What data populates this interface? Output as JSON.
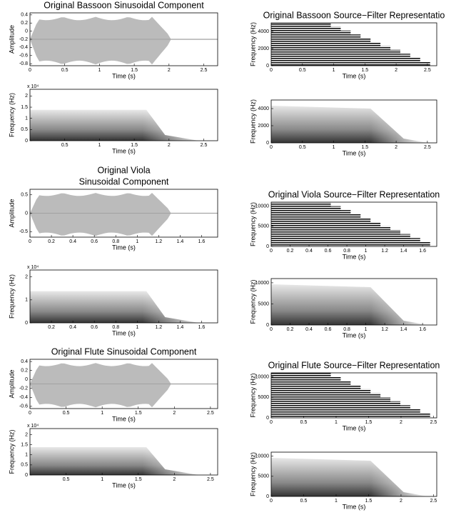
{
  "chart_data": [
    {
      "type": "waveform",
      "title": [
        "Original Bassoon Sinusoidal Component"
      ],
      "xlabel": "Time (s)",
      "ylabel": "Amplitude",
      "xlim": [
        0,
        2.7
      ],
      "ylim": [
        -0.85,
        0.45
      ],
      "xticks": [
        0,
        0.5,
        1,
        1.5,
        2,
        2.5
      ],
      "yticks": [
        0.4,
        0.2,
        0,
        -0.2,
        -0.4,
        -0.6,
        -0.8
      ]
    },
    {
      "type": "source-filter",
      "title": [
        "Original Bassoon Source−Filter Representatio"
      ],
      "xlabel": "Time (s)",
      "ylabel": "Frequency (Hz)",
      "xlim": [
        0,
        2.65
      ],
      "ylim": [
        0,
        5000
      ],
      "xticks": [
        0,
        0.5,
        1,
        1.5,
        2,
        2.5
      ],
      "yticks": [
        0,
        2000,
        4000
      ]
    },
    {
      "type": "spectrogram",
      "xlabel": "Time (s)",
      "ylabel": "Frequency (Hz)",
      "y_multiplier": "x 10⁴",
      "xlim": [
        0,
        2.7
      ],
      "ylim": [
        0,
        2.3
      ],
      "xticks": [
        0.5,
        1,
        1.5,
        2,
        2.5
      ],
      "yticks": [
        0,
        0.5,
        1,
        1.5,
        2
      ]
    },
    {
      "type": "source-filter-spectrogram",
      "xlabel": "Time (s)",
      "ylabel": "Frequency (Hz)",
      "xlim": [
        0,
        2.65
      ],
      "ylim": [
        0,
        5000
      ],
      "xticks": [
        0,
        0.5,
        1,
        1.5,
        2,
        2.5
      ],
      "yticks": [
        0,
        2000,
        4000
      ]
    },
    {
      "type": "waveform",
      "title": [
        "Original Viola",
        "Sinusoidal Component"
      ],
      "xlabel": "Time (s)",
      "ylabel": "Amplitude",
      "xlim": [
        0,
        1.75
      ],
      "ylim": [
        -0.65,
        0.65
      ],
      "xticks": [
        0,
        0.2,
        0.4,
        0.6,
        0.8,
        1,
        1.2,
        1.4,
        1.6
      ],
      "yticks": [
        0.5,
        0,
        -0.5
      ]
    },
    {
      "type": "source-filter",
      "title": [
        "Original Viola Source−Filter Representation"
      ],
      "xlabel": "Time (s)",
      "ylabel": "Frequency (Hz)",
      "xlim": [
        0,
        1.75
      ],
      "ylim": [
        0,
        11000
      ],
      "xticks": [
        0,
        0.2,
        0.4,
        0.6,
        0.8,
        1,
        1.2,
        1.4,
        1.6
      ],
      "yticks": [
        0,
        5000,
        10000
      ]
    },
    {
      "type": "spectrogram",
      "xlabel": "Time (s)",
      "ylabel": "Frequency (Hz)",
      "y_multiplier": "x 10⁴",
      "xlim": [
        0,
        1.75
      ],
      "ylim": [
        0,
        2.3
      ],
      "xticks": [
        0.2,
        0.4,
        0.6,
        0.8,
        1,
        1.2,
        1.4,
        1.6
      ],
      "yticks": [
        0,
        1,
        2
      ]
    },
    {
      "type": "source-filter-spectrogram",
      "xlabel": "Time (s)",
      "ylabel": "Frequency (Hz)",
      "xlim": [
        0,
        1.75
      ],
      "ylim": [
        0,
        11000
      ],
      "xticks": [
        0,
        0.2,
        0.4,
        0.6,
        0.8,
        1,
        1.2,
        1.4,
        1.6
      ],
      "yticks": [
        0,
        5000,
        10000
      ]
    },
    {
      "type": "waveform",
      "title": [
        "Original Flute Sinusoidal Component"
      ],
      "xlabel": "Time (s)",
      "ylabel": "Amplitude",
      "xlim": [
        0,
        2.6
      ],
      "ylim": [
        -0.65,
        0.45
      ],
      "xticks": [
        0,
        0.5,
        1,
        1.5,
        2,
        2.5
      ],
      "yticks": [
        0.4,
        0.2,
        0,
        -0.2,
        -0.4,
        -0.6
      ]
    },
    {
      "type": "source-filter",
      "title": [
        "Original Flute Source−Filter Representation"
      ],
      "xlabel": "Time (s)",
      "ylabel": "Frequency (Hz)",
      "xlim": [
        0,
        2.55
      ],
      "ylim": [
        0,
        11000
      ],
      "xticks": [
        0,
        0.5,
        1,
        1.5,
        2,
        2.5
      ],
      "yticks": [
        0,
        5000,
        10000
      ]
    },
    {
      "type": "spectrogram",
      "xlabel": "Time (s)",
      "ylabel": "Frequency (Hz)",
      "y_multiplier": "x 10⁴",
      "xlim": [
        0,
        2.6
      ],
      "ylim": [
        0,
        2.3
      ],
      "xticks": [
        0.5,
        1,
        1.5,
        2,
        2.5
      ],
      "yticks": [
        0,
        0.5,
        1,
        1.5,
        2
      ]
    },
    {
      "type": "source-filter-spectrogram",
      "xlabel": "Time (s)",
      "ylabel": "Frequency (Hz)",
      "xlim": [
        0,
        2.55
      ],
      "ylim": [
        0,
        11000
      ],
      "xticks": [
        0,
        0.5,
        1,
        1.5,
        2,
        2.5
      ],
      "yticks": [
        0,
        5000,
        10000
      ]
    }
  ]
}
